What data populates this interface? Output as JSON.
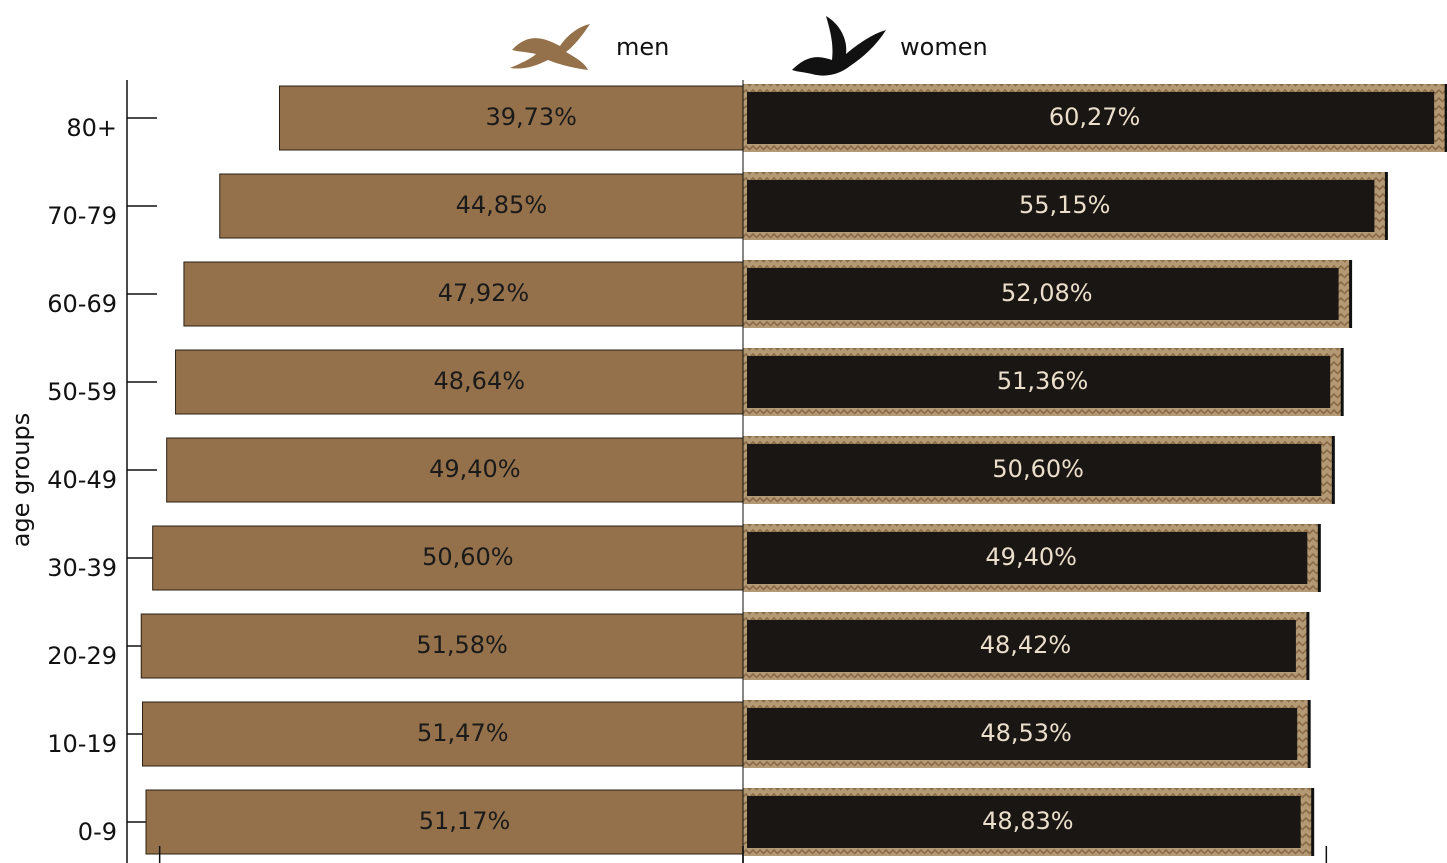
{
  "chart_data": {
    "type": "butterfly-bar",
    "y_axis_label": "age groups",
    "categories": [
      "80+",
      "70-79",
      "60-69",
      "50-59",
      "40-49",
      "30-39",
      "20-29",
      "10-19",
      "0-9"
    ],
    "series": [
      {
        "name": "men",
        "color": "#94714b",
        "values": [
          39.73,
          44.85,
          47.92,
          48.64,
          49.4,
          50.6,
          51.58,
          51.47,
          51.17
        ],
        "value_labels": [
          "39,73%",
          "44,85%",
          "47,92%",
          "48,64%",
          "49,40%",
          "50,60%",
          "51,58%",
          "51,47%",
          "51,17%"
        ]
      },
      {
        "name": "women",
        "color": "#1a1614",
        "values": [
          60.27,
          55.15,
          52.08,
          51.36,
          50.6,
          49.4,
          48.42,
          48.53,
          48.83
        ],
        "value_labels": [
          "60,27%",
          "55,15%",
          "52,08%",
          "51,36%",
          "50,60%",
          "49,40%",
          "48,42%",
          "48,53%",
          "48,83%"
        ]
      }
    ],
    "xlim": [
      0,
      60
    ],
    "xticks": [
      0,
      50
    ]
  }
}
